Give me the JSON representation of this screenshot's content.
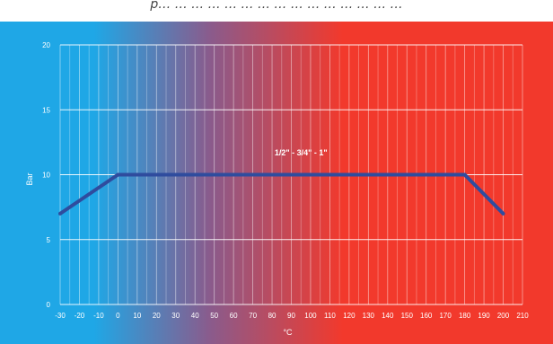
{
  "caption": {
    "text": "p… … … … … … … … … … … … … … …"
  },
  "colors": {
    "cold": "#1fa7e6",
    "mid": "#8a5b8c",
    "hot": "#f2392c",
    "line": "#2f4c9e",
    "grid": "#ffffff"
  },
  "chart_data": {
    "type": "line",
    "title": "",
    "xlabel": "°C",
    "ylabel": "Bar",
    "xlim": [
      -30,
      210
    ],
    "ylim": [
      0,
      20
    ],
    "x_ticks": [
      "-30",
      "-20",
      "-10",
      "0",
      "10",
      "20",
      "30",
      "40",
      "50",
      "60",
      "70",
      "80",
      "90",
      "100",
      "110",
      "120",
      "130",
      "140",
      "150",
      "160",
      "170",
      "180",
      "190",
      "200",
      "210"
    ],
    "y_ticks": [
      "0",
      "5",
      "10",
      "15",
      "20"
    ],
    "grid": true,
    "series": [
      {
        "name": "1/2\" - 3/4\" - 1\"",
        "x": [
          -30,
          0,
          180,
          200
        ],
        "y": [
          7,
          10,
          10,
          7
        ]
      }
    ],
    "annotation": {
      "text": "1/2\" - 3/4\" - 1\"",
      "x": 95,
      "y": 11.5
    }
  }
}
